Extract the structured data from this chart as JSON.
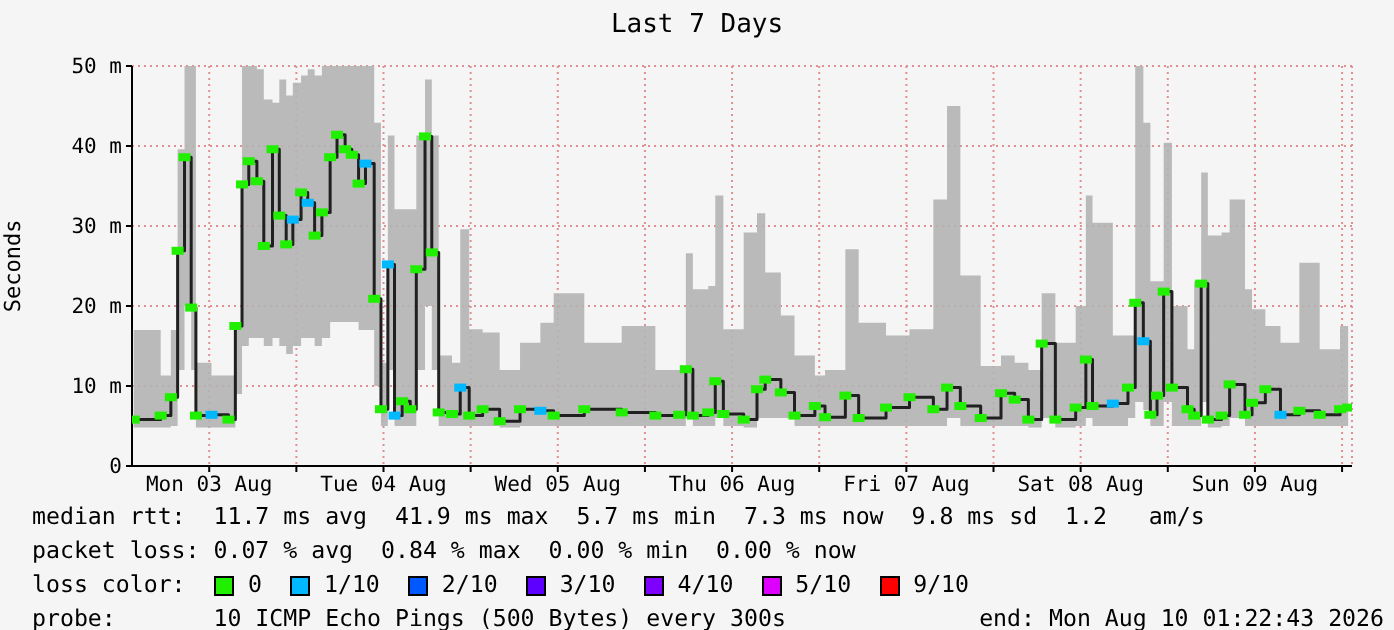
{
  "chart_data": {
    "type": "step",
    "title": "Last 7 Days",
    "ylabel": "Seconds",
    "legend_title": "loss color:",
    "legend": "bottom",
    "grid": true,
    "xlim": [
      "2026-08-03T01:22",
      "2026-08-10T01:22"
    ],
    "xticks": [
      {
        "value": "2026-08-03T12:00",
        "label": "Mon 03 Aug"
      },
      {
        "value": "2026-08-04T00:00",
        "label": null
      },
      {
        "value": "2026-08-04T12:00",
        "label": "Tue 04 Aug"
      },
      {
        "value": "2026-08-05T00:00",
        "label": null
      },
      {
        "value": "2026-08-05T12:00",
        "label": "Wed 05 Aug"
      },
      {
        "value": "2026-08-06T00:00",
        "label": null
      },
      {
        "value": "2026-08-06T12:00",
        "label": "Thu 06 Aug"
      },
      {
        "value": "2026-08-07T00:00",
        "label": null
      },
      {
        "value": "2026-08-07T12:00",
        "label": "Fri 07 Aug"
      },
      {
        "value": "2026-08-08T00:00",
        "label": null
      },
      {
        "value": "2026-08-08T12:00",
        "label": "Sat 08 Aug"
      },
      {
        "value": "2026-08-09T00:00",
        "label": null
      },
      {
        "value": "2026-08-09T12:00",
        "label": "Sun 09 Aug"
      },
      {
        "value": "2026-08-10T00:00",
        "label": null
      }
    ],
    "ylim": [
      0,
      50
    ],
    "yticks": [
      0,
      {
        "value": 10,
        "label": "10 m"
      },
      {
        "value": 20,
        "label": "20 m"
      },
      {
        "value": 30,
        "label": "30 m"
      },
      {
        "value": 40,
        "label": "40 m"
      },
      {
        "value": 50,
        "label": "50 m"
      }
    ],
    "x": [
      "2026-08-03T01:36",
      "2026-08-03T05:19",
      "2026-08-03T06:43",
      "2026-08-03T07:39",
      "2026-08-03T08:36",
      "2026-08-03T09:31",
      "2026-08-03T10:10",
      "2026-08-03T12:19",
      "2026-08-03T14:39",
      "2026-08-03T15:36",
      "2026-08-03T16:31",
      "2026-08-03T17:27",
      "2026-08-03T18:34",
      "2026-08-03T19:31",
      "2026-08-03T20:43",
      "2026-08-03T21:39",
      "2026-08-03T22:36",
      "2026-08-03T23:31",
      "2026-08-04T00:39",
      "2026-08-04T01:34",
      "2026-08-04T02:31",
      "2026-08-04T03:31",
      "2026-08-04T04:39",
      "2026-08-04T05:36",
      "2026-08-04T06:43",
      "2026-08-04T07:38",
      "2026-08-04T08:34",
      "2026-08-04T09:31",
      "2026-08-04T10:43",
      "2026-08-04T11:39",
      "2026-08-04T12:36",
      "2026-08-04T13:31",
      "2026-08-04T14:34",
      "2026-08-04T15:41",
      "2026-08-04T16:31",
      "2026-08-04T17:43",
      "2026-08-04T18:39",
      "2026-08-04T19:36",
      "2026-08-04T21:26",
      "2026-08-04T22:34",
      "2026-08-04T23:48",
      "2026-08-05T01:39",
      "2026-08-05T04:00",
      "2026-08-05T06:48",
      "2026-08-05T09:36",
      "2026-08-05T11:26",
      "2026-08-05T15:39",
      "2026-08-05T20:48",
      "2026-08-06T01:26",
      "2026-08-06T04:43",
      "2026-08-06T05:38",
      "2026-08-06T06:36",
      "2026-08-06T08:43",
      "2026-08-06T09:41",
      "2026-08-06T10:48",
      "2026-08-06T13:36",
      "2026-08-06T15:26",
      "2026-08-06T16:34",
      "2026-08-06T18:43",
      "2026-08-06T20:36",
      "2026-08-06T23:24",
      "2026-08-07T00:48",
      "2026-08-07T03:36",
      "2026-08-07T05:26",
      "2026-08-07T09:12",
      "2026-08-07T12:26",
      "2026-08-07T15:43",
      "2026-08-07T17:36",
      "2026-08-07T19:26",
      "2026-08-07T22:14",
      "2026-08-08T01:02",
      "2026-08-08T02:55",
      "2026-08-08T04:48",
      "2026-08-08T06:38",
      "2026-08-08T08:31",
      "2026-08-08T11:19",
      "2026-08-08T12:43",
      "2026-08-08T13:38",
      "2026-08-08T16:26",
      "2026-08-08T18:31",
      "2026-08-08T19:31",
      "2026-08-08T20:38",
      "2026-08-08T21:36",
      "2026-08-08T22:31",
      "2026-08-08T23:26",
      "2026-08-09T00:34",
      "2026-08-09T02:43",
      "2026-08-09T03:38",
      "2026-08-09T04:36",
      "2026-08-09T05:31",
      "2026-08-09T07:24",
      "2026-08-09T08:31",
      "2026-08-09T10:38",
      "2026-08-09T11:36",
      "2026-08-09T13:26",
      "2026-08-09T15:31",
      "2026-08-09T18:07",
      "2026-08-09T20:55",
      "2026-08-09T23:43",
      "2026-08-10T00:50"
    ],
    "series": [
      {
        "color": "#202020",
        "values": [
          5.8,
          6.3,
          8.6,
          26.9,
          38.6,
          19.8,
          6.3,
          6.4,
          5.8,
          17.5,
          35.2,
          38.1,
          35.6,
          27.5,
          39.6,
          31.3,
          27.7,
          30.8,
          34.2,
          32.9,
          28.8,
          31.7,
          38.6,
          41.4,
          39.6,
          38.9,
          35.3,
          37.8,
          20.9,
          7.1,
          25.2,
          6.3,
          8.1,
          7.1,
          24.6,
          41.2,
          26.7,
          6.7,
          6.5,
          9.8,
          6.3,
          7.1,
          5.6,
          7.1,
          6.9,
          6.3,
          7.1,
          6.7,
          6.3,
          6.4,
          12.1,
          6.3,
          6.7,
          10.6,
          6.5,
          5.8,
          9.6,
          10.8,
          9.2,
          6.3,
          7.5,
          6.1,
          8.8,
          6,
          7.3,
          8.6,
          7.1,
          9.8,
          7.5,
          6,
          9.1,
          8.3,
          5.8,
          15.3,
          5.8,
          7.3,
          13.3,
          7.5,
          7.8,
          9.8,
          20.4,
          15.6,
          6.4,
          8.8,
          21.8,
          9.8,
          7.1,
          6.3,
          22.8,
          5.8,
          6.3,
          10.2,
          6.4,
          7.9,
          9.6,
          6.4,
          6.9,
          6.4,
          7.1,
          7.3
        ],
        "lower": [
          4.8,
          4.8,
          5,
          12,
          20,
          12,
          4.8,
          4.8,
          4.8,
          9,
          15,
          16,
          16,
          15,
          16,
          15,
          14,
          15,
          16,
          16,
          15,
          16,
          18,
          18,
          18,
          18,
          17,
          17,
          10,
          5,
          12,
          5,
          5,
          5,
          12,
          20,
          12,
          5,
          5,
          5,
          5,
          5,
          4.8,
          5,
          5,
          5,
          5,
          5,
          5,
          5,
          6,
          5,
          5,
          6,
          5,
          4.8,
          6,
          6,
          6,
          5,
          5,
          5,
          5,
          5,
          5,
          5,
          5,
          6,
          5,
          5,
          5,
          5,
          4.8,
          6,
          4.8,
          5,
          6,
          5,
          5,
          6,
          8,
          7,
          5,
          5,
          8,
          5,
          5,
          5,
          8,
          4.8,
          5,
          6,
          5,
          5,
          5,
          5,
          5,
          5,
          5,
          5
        ],
        "upper": [
          17,
          11.3,
          17,
          39.6,
          50,
          50,
          12.9,
          11.3,
          11.3,
          17.9,
          50,
          50,
          49.6,
          45.8,
          45.4,
          48.3,
          46.3,
          47.9,
          48.8,
          49.6,
          48.8,
          50,
          50,
          50,
          50,
          50,
          50,
          50,
          42.9,
          12.9,
          41.3,
          32.1,
          32.1,
          32.1,
          41.3,
          48.3,
          41.3,
          13.8,
          12.9,
          29.6,
          17.1,
          16.7,
          12,
          15.4,
          17.9,
          21.6,
          15.4,
          17.5,
          12,
          12,
          26.6,
          22.1,
          22.5,
          33.8,
          17.1,
          29.2,
          31.6,
          24.2,
          18.8,
          13.8,
          11.3,
          12,
          27.1,
          17.9,
          16.3,
          17.1,
          33.3,
          45,
          23.8,
          12.5,
          13.8,
          12.9,
          12,
          21.6,
          15.4,
          20,
          33.8,
          30.4,
          16.3,
          16.3,
          50,
          42.9,
          23.1,
          23.1,
          40.4,
          20,
          14.6,
          23.1,
          36.7,
          28.8,
          29.2,
          33.3,
          22.1,
          19.6,
          17.5,
          15.4,
          25.4,
          14.6,
          17.5,
          20.4
        ]
      },
      {
        "type": "scatter",
        "name": "0",
        "color": "#20f000",
        "marker": "square",
        "x": [
          "2026-08-03T01:36",
          "2026-08-03T05:19",
          "2026-08-03T06:43",
          "2026-08-03T07:39",
          "2026-08-03T08:36",
          "2026-08-03T09:31",
          "2026-08-03T10:10",
          "2026-08-03T14:39",
          "2026-08-03T15:36",
          "2026-08-03T16:31",
          "2026-08-03T17:27",
          "2026-08-03T18:34",
          "2026-08-03T19:31",
          "2026-08-03T20:43",
          "2026-08-03T21:39",
          "2026-08-03T22:36",
          "2026-08-04T00:39",
          "2026-08-04T02:31",
          "2026-08-04T03:31",
          "2026-08-04T04:39",
          "2026-08-04T05:36",
          "2026-08-04T06:43",
          "2026-08-04T07:38",
          "2026-08-04T08:34",
          "2026-08-04T10:43",
          "2026-08-04T11:39",
          "2026-08-04T14:34",
          "2026-08-04T15:41",
          "2026-08-04T16:31",
          "2026-08-04T17:43",
          "2026-08-04T18:39",
          "2026-08-04T19:36",
          "2026-08-04T21:26",
          "2026-08-04T23:48",
          "2026-08-05T01:39",
          "2026-08-05T04:00",
          "2026-08-05T06:48",
          "2026-08-05T11:26",
          "2026-08-05T15:39",
          "2026-08-05T20:48",
          "2026-08-06T01:26",
          "2026-08-06T04:43",
          "2026-08-06T05:38",
          "2026-08-06T06:36",
          "2026-08-06T08:43",
          "2026-08-06T09:41",
          "2026-08-06T10:48",
          "2026-08-06T13:36",
          "2026-08-06T15:26",
          "2026-08-06T16:34",
          "2026-08-06T18:43",
          "2026-08-06T20:36",
          "2026-08-06T23:24",
          "2026-08-07T00:48",
          "2026-08-07T03:36",
          "2026-08-07T05:26",
          "2026-08-07T09:12",
          "2026-08-07T12:26",
          "2026-08-07T15:43",
          "2026-08-07T17:36",
          "2026-08-07T19:26",
          "2026-08-07T22:14",
          "2026-08-08T01:02",
          "2026-08-08T02:55",
          "2026-08-08T04:48",
          "2026-08-08T06:38",
          "2026-08-08T08:31",
          "2026-08-08T11:19",
          "2026-08-08T12:43",
          "2026-08-08T13:38",
          "2026-08-08T18:31",
          "2026-08-08T19:31",
          "2026-08-08T21:36",
          "2026-08-08T22:31",
          "2026-08-08T23:26",
          "2026-08-09T00:34",
          "2026-08-09T02:43",
          "2026-08-09T03:38",
          "2026-08-09T04:36",
          "2026-08-09T05:31",
          "2026-08-09T07:24",
          "2026-08-09T08:31",
          "2026-08-09T10:38",
          "2026-08-09T11:36",
          "2026-08-09T13:26",
          "2026-08-09T18:07",
          "2026-08-09T20:55",
          "2026-08-09T23:43",
          "2026-08-10T00:50"
        ],
        "values": [
          5.8,
          6.3,
          8.6,
          26.9,
          38.6,
          19.8,
          6.3,
          5.8,
          17.5,
          35.2,
          38.1,
          35.6,
          27.5,
          39.6,
          31.3,
          27.7,
          34.2,
          28.8,
          31.7,
          38.6,
          41.4,
          39.6,
          38.9,
          35.3,
          20.9,
          7.1,
          8.1,
          7.1,
          24.6,
          41.2,
          26.7,
          6.7,
          6.5,
          6.3,
          7.1,
          5.6,
          7.1,
          6.3,
          7.1,
          6.7,
          6.3,
          6.4,
          12.1,
          6.3,
          6.7,
          10.6,
          6.5,
          5.8,
          9.6,
          10.8,
          9.2,
          6.3,
          7.5,
          6.1,
          8.8,
          6,
          7.3,
          8.6,
          7.1,
          9.8,
          7.5,
          6,
          9.1,
          8.3,
          5.8,
          15.3,
          5.8,
          7.3,
          13.3,
          7.5,
          9.8,
          20.4,
          6.4,
          8.8,
          21.8,
          9.8,
          7.1,
          6.3,
          22.8,
          5.8,
          6.3,
          10.2,
          6.4,
          7.9,
          9.6,
          6.9,
          6.4,
          7.1,
          7.3
        ]
      },
      {
        "type": "scatter",
        "name": "1/10",
        "color": "#00b8ff",
        "marker": "square",
        "x": [
          "2026-08-03T12:19",
          "2026-08-03T23:31",
          "2026-08-04T01:34",
          "2026-08-04T09:31",
          "2026-08-04T12:36",
          "2026-08-04T13:31",
          "2026-08-04T22:34",
          "2026-08-05T09:36",
          "2026-08-08T16:26",
          "2026-08-08T20:38",
          "2026-08-09T15:31"
        ],
        "values": [
          6.4,
          30.8,
          32.9,
          37.8,
          25.2,
          6.3,
          9.8,
          6.9,
          7.8,
          15.6,
          6.4
        ]
      },
      {
        "type": "scatter",
        "name": "2/10",
        "color": "#0059ff",
        "marker": "square",
        "values": [
          null,
          null,
          null,
          null,
          null,
          null,
          null,
          null,
          null,
          null,
          null,
          null,
          null,
          null,
          null,
          null,
          null,
          null,
          null,
          null,
          null,
          null,
          null,
          null,
          null,
          null,
          null,
          null,
          null,
          null,
          null,
          null,
          null,
          null,
          null,
          null,
          null,
          null,
          null,
          null,
          null,
          null,
          null,
          null,
          null,
          null,
          null,
          null,
          null,
          null,
          null,
          null,
          null,
          null,
          null,
          null,
          null,
          null,
          null,
          null,
          null,
          null,
          null,
          null,
          null,
          null,
          null,
          null,
          null,
          null,
          null,
          null,
          null,
          null,
          null,
          null,
          null,
          null,
          null,
          null,
          null,
          null,
          null,
          null,
          null,
          null,
          null,
          null,
          null,
          null,
          null,
          null,
          null,
          null,
          null,
          null,
          null,
          null,
          null,
          null
        ]
      },
      {
        "type": "scatter",
        "name": "3/10",
        "color": "#5e00ff",
        "marker": "square",
        "values": [
          null,
          null,
          null,
          null,
          null,
          null,
          null,
          null,
          null,
          null,
          null,
          null,
          null,
          null,
          null,
          null,
          null,
          null,
          null,
          null,
          null,
          null,
          null,
          null,
          null,
          null,
          null,
          null,
          null,
          null,
          null,
          null,
          null,
          null,
          null,
          null,
          null,
          null,
          null,
          null,
          null,
          null,
          null,
          null,
          null,
          null,
          null,
          null,
          null,
          null,
          null,
          null,
          null,
          null,
          null,
          null,
          null,
          null,
          null,
          null,
          null,
          null,
          null,
          null,
          null,
          null,
          null,
          null,
          null,
          null,
          null,
          null,
          null,
          null,
          null,
          null,
          null,
          null,
          null,
          null,
          null,
          null,
          null,
          null,
          null,
          null,
          null,
          null,
          null,
          null,
          null,
          null,
          null,
          null,
          null,
          null,
          null,
          null,
          null,
          null
        ]
      },
      {
        "type": "scatter",
        "name": "4/10",
        "color": "#7e00ff",
        "marker": "square",
        "values": [
          null,
          null,
          null,
          null,
          null,
          null,
          null,
          null,
          null,
          null,
          null,
          null,
          null,
          null,
          null,
          null,
          null,
          null,
          null,
          null,
          null,
          null,
          null,
          null,
          null,
          null,
          null,
          null,
          null,
          null,
          null,
          null,
          null,
          null,
          null,
          null,
          null,
          null,
          null,
          null,
          null,
          null,
          null,
          null,
          null,
          null,
          null,
          null,
          null,
          null,
          null,
          null,
          null,
          null,
          null,
          null,
          null,
          null,
          null,
          null,
          null,
          null,
          null,
          null,
          null,
          null,
          null,
          null,
          null,
          null,
          null,
          null,
          null,
          null,
          null,
          null,
          null,
          null,
          null,
          null,
          null,
          null,
          null,
          null,
          null,
          null,
          null,
          null,
          null,
          null,
          null,
          null,
          null,
          null,
          null,
          null,
          null,
          null,
          null,
          null
        ]
      },
      {
        "type": "scatter",
        "name": "5/10",
        "color": "#dd00ff",
        "marker": "square",
        "values": [
          null,
          null,
          null,
          null,
          null,
          null,
          null,
          null,
          null,
          null,
          null,
          null,
          null,
          null,
          null,
          null,
          null,
          null,
          null,
          null,
          null,
          null,
          null,
          null,
          null,
          null,
          null,
          null,
          null,
          null,
          null,
          null,
          null,
          null,
          null,
          null,
          null,
          null,
          null,
          null,
          null,
          null,
          null,
          null,
          null,
          null,
          null,
          null,
          null,
          null,
          null,
          null,
          null,
          null,
          null,
          null,
          null,
          null,
          null,
          null,
          null,
          null,
          null,
          null,
          null,
          null,
          null,
          null,
          null,
          null,
          null,
          null,
          null,
          null,
          null,
          null,
          null,
          null,
          null,
          null,
          null,
          null,
          null,
          null,
          null,
          null,
          null,
          null,
          null,
          null,
          null,
          null,
          null,
          null,
          null,
          null,
          null,
          null,
          null,
          null
        ]
      },
      {
        "type": "scatter",
        "name": "9/10",
        "color": "#ff0000",
        "marker": "square",
        "values": [
          null,
          null,
          null,
          null,
          null,
          null,
          null,
          null,
          null,
          null,
          null,
          null,
          null,
          null,
          null,
          null,
          null,
          null,
          null,
          null,
          null,
          null,
          null,
          null,
          null,
          null,
          null,
          null,
          null,
          null,
          null,
          null,
          null,
          null,
          null,
          null,
          null,
          null,
          null,
          null,
          null,
          null,
          null,
          null,
          null,
          null,
          null,
          null,
          null,
          null,
          null,
          null,
          null,
          null,
          null,
          null,
          null,
          null,
          null,
          null,
          null,
          null,
          null,
          null,
          null,
          null,
          null,
          null,
          null,
          null,
          null,
          null,
          null,
          null,
          null,
          null,
          null,
          null,
          null,
          null,
          null,
          null,
          null,
          null,
          null,
          null,
          null,
          null,
          null,
          null,
          null,
          null,
          null,
          null,
          null,
          null,
          null,
          null,
          null,
          null
        ]
      }
    ],
    "annotations": [
      "median rtt:  11.7 ms avg  41.9 ms max  5.7 ms min  7.3 ms now  9.8 ms sd  1.2   am/s",
      "packet loss: 0.07 % avg  0.84 % max  0.00 % min  0.00 % now",
      "probe:       10 ICMP Echo Pings (500 Bytes) every 300s",
      "end: Mon Aug 10 01:22:43 2026"
    ]
  }
}
